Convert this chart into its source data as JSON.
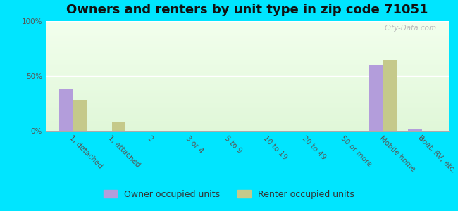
{
  "title": "Owners and renters by unit type in zip code 71051",
  "categories": [
    "1, detached",
    "1, attached",
    "2",
    "3 or 4",
    "5 to 9",
    "10 to 19",
    "20 to 49",
    "50 or more",
    "Mobile home",
    "Boat, RV, etc."
  ],
  "owner_values": [
    38,
    0,
    0,
    0,
    0,
    0,
    0,
    0,
    60,
    2
  ],
  "renter_values": [
    28,
    8,
    0,
    0,
    0,
    0,
    0,
    0,
    65,
    0
  ],
  "owner_color": "#b39ddb",
  "renter_color": "#c5c98a",
  "background_color": "#00e5ff",
  "yticks": [
    0,
    50,
    100
  ],
  "ylim": [
    0,
    100
  ],
  "legend_owner": "Owner occupied units",
  "legend_renter": "Renter occupied units",
  "bar_width": 0.35,
  "title_fontsize": 13,
  "tick_fontsize": 7.5,
  "legend_fontsize": 9,
  "watermark": "City-Data.com"
}
